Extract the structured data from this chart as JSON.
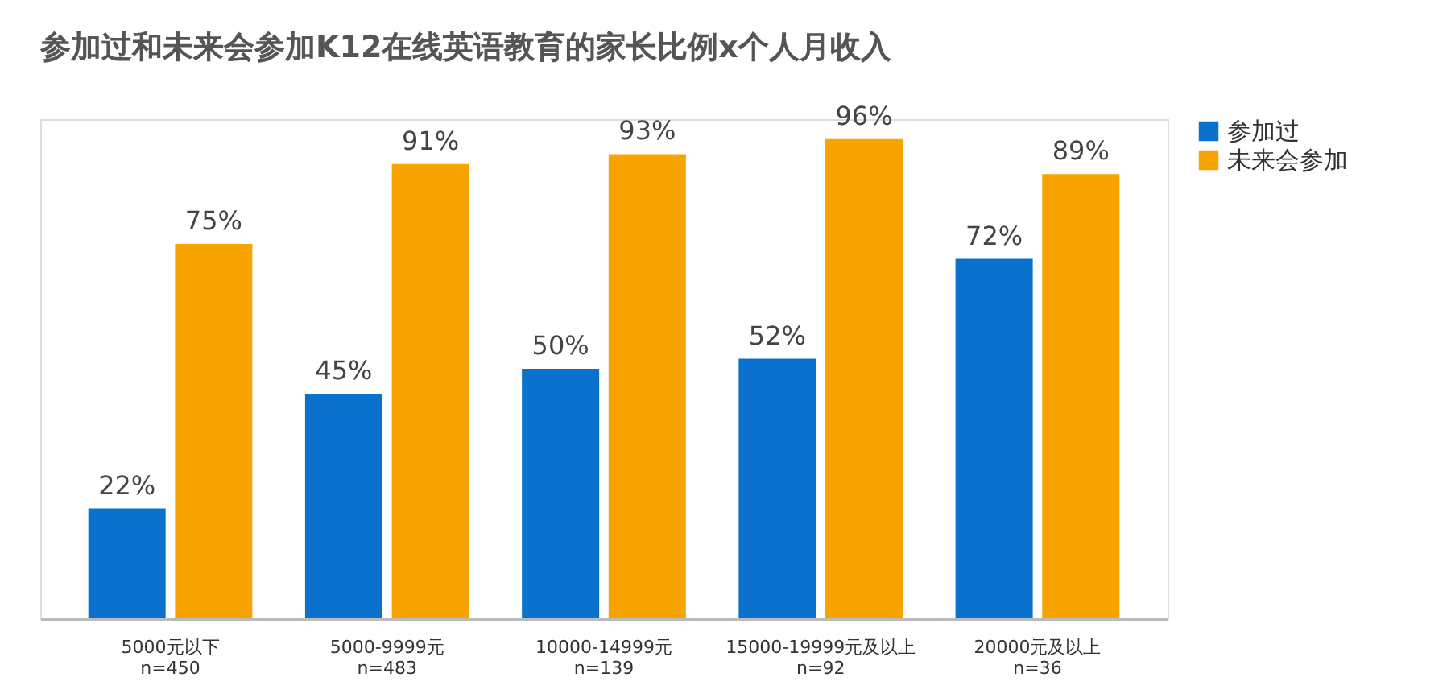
{
  "chart_data": {
    "type": "bar",
    "title": "参加过和未来会参加K12在线英语教育的家长比例x个人月收入",
    "categories": [
      "5000元以下\nn=450",
      "5000-9999元\nn=483",
      "10000-14999元\nn=139",
      "15000-19999元及以上\nn=92",
      "20000元及以上\nn=36"
    ],
    "series": [
      {
        "name": "参加过",
        "color": "#0a72cc",
        "values": [
          22,
          45,
          50,
          52,
          72
        ],
        "value_labels": [
          "22%",
          "45%",
          "50%",
          "52%",
          "72%"
        ]
      },
      {
        "name": "未来会参加",
        "color": "#f7a400",
        "values": [
          75,
          91,
          93,
          96,
          89
        ],
        "value_labels": [
          "75%",
          "91%",
          "93%",
          "96%",
          "89%"
        ]
      }
    ],
    "legend": "right",
    "grid": false
  }
}
